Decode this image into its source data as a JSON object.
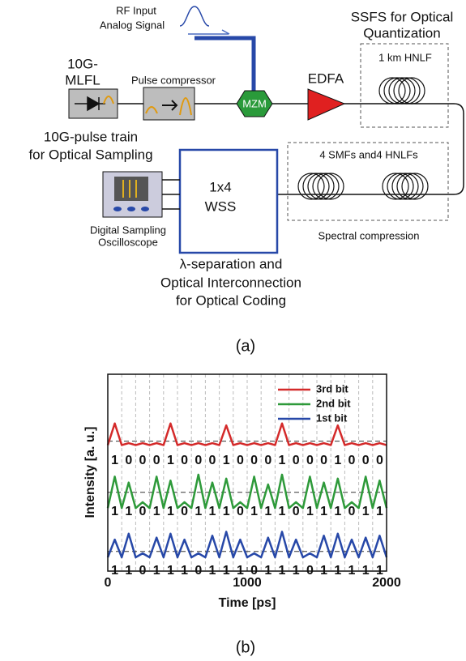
{
  "diagram": {
    "rf_input": "RF Input",
    "analog_signal": "Analog Signal",
    "mlfl_1": "10G-",
    "mlfl_2": "MLFL",
    "pulse_compressor": "Pulse compressor",
    "mzm": "MZM",
    "edfa": "EDFA",
    "ssfs_1": "SSFS for Optical",
    "ssfs_2": "Quantization",
    "hnlf": "1 km HNLF",
    "pulse_train_1": "10G-pulse train",
    "pulse_train_2": "for Optical Sampling",
    "smfs": "4 SMFs and4 HNLFs",
    "wss_1": "1x4",
    "wss_2": "WSS",
    "scope_1": "Digital Sampling",
    "scope_2": "Oscilloscope",
    "spectral": "Spectral compression",
    "lambda_1": "λ-separation and",
    "lambda_2": "Optical Interconnection",
    "lambda_3": "for Optical Coding",
    "caption": "(a)"
  },
  "chart_data": {
    "type": "line",
    "caption": "(b)",
    "x_label": "Time [ps]",
    "y_label": "Intensity [a. u.]",
    "xlim": [
      0,
      2000
    ],
    "xticks": [
      0,
      1000,
      2000
    ],
    "ylim": [
      0,
      10
    ],
    "x": [
      0,
      50,
      100,
      150,
      200,
      250,
      300,
      350,
      400,
      450,
      500,
      550,
      600,
      650,
      700,
      750,
      800,
      850,
      900,
      950,
      1000,
      1050,
      1100,
      1150,
      1200,
      1250,
      1300,
      1350,
      1400,
      1450,
      1500,
      1550,
      1600,
      1650,
      1700,
      1750,
      1800,
      1850,
      1900,
      1950,
      2000
    ],
    "series": [
      {
        "name": "3rd bit",
        "color": "#d42a2a",
        "threshold": 6.6,
        "bits": [
          1,
          0,
          0,
          0,
          1,
          0,
          0,
          0,
          1,
          0,
          0,
          0,
          1,
          0,
          0,
          0,
          1,
          0,
          0,
          0
        ],
        "values": [
          6.4,
          7.5,
          6.4,
          6.5,
          6.4,
          6.5,
          6.4,
          6.5,
          6.4,
          7.5,
          6.4,
          6.5,
          6.4,
          6.5,
          6.4,
          6.5,
          6.4,
          7.4,
          6.4,
          6.5,
          6.4,
          6.5,
          6.4,
          6.5,
          6.4,
          7.5,
          6.4,
          6.5,
          6.4,
          6.5,
          6.4,
          6.5,
          6.4,
          7.4,
          6.4,
          6.5,
          6.4,
          6.5,
          6.4,
          6.5,
          6.4
        ]
      },
      {
        "name": "2nd bit",
        "color": "#2e9a3a",
        "threshold": 4.0,
        "bits": [
          1,
          1,
          0,
          1,
          1,
          0,
          1,
          1,
          1,
          0,
          1,
          1,
          1,
          0,
          1,
          1,
          1,
          0,
          1,
          1
        ],
        "values": [
          3.2,
          4.8,
          3.2,
          4.5,
          3.2,
          3.5,
          3.2,
          4.8,
          3.2,
          4.6,
          3.2,
          3.5,
          3.2,
          4.9,
          3.2,
          4.5,
          3.2,
          4.7,
          3.2,
          3.5,
          3.2,
          4.8,
          3.2,
          4.4,
          3.2,
          4.9,
          3.2,
          3.5,
          3.2,
          4.8,
          3.2,
          4.5,
          3.2,
          4.7,
          3.2,
          3.5,
          3.2,
          4.8,
          3.2,
          4.6,
          3.2
        ]
      },
      {
        "name": "1st bit",
        "color": "#2748a8",
        "threshold": 1.0,
        "bits": [
          1,
          1,
          0,
          1,
          1,
          1,
          0,
          1,
          1,
          1,
          0,
          1,
          1,
          1,
          0,
          1,
          1,
          1,
          1,
          1
        ],
        "values": [
          0.7,
          1.6,
          0.7,
          1.9,
          0.7,
          0.9,
          0.7,
          1.7,
          0.7,
          1.9,
          0.7,
          1.6,
          0.7,
          0.9,
          0.7,
          1.8,
          0.7,
          2.0,
          0.7,
          1.6,
          0.7,
          0.9,
          0.7,
          1.7,
          0.7,
          2.0,
          0.7,
          1.6,
          0.7,
          0.9,
          0.7,
          1.8,
          0.7,
          1.9,
          0.7,
          1.6,
          0.7,
          1.7,
          0.7,
          1.8,
          0.7
        ]
      }
    ]
  }
}
